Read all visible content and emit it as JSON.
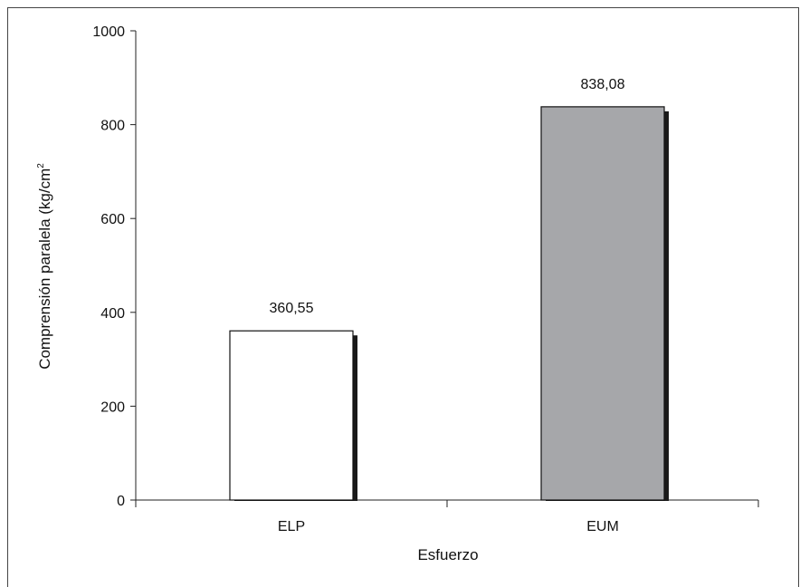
{
  "chart_data": {
    "type": "bar",
    "categories": [
      "ELP",
      "EUM"
    ],
    "values": [
      360.55,
      838.08
    ],
    "data_labels": [
      "360,55",
      "838,08"
    ],
    "bar_colors": [
      "#ffffff",
      "#a6a7aa"
    ],
    "shadow_color": "#1a1a1a",
    "xlabel": "Esfuerzo",
    "ylabel_main": "Comprensión paralela (kg/cm",
    "ylabel_sup": "2",
    "ylim": [
      0,
      1000
    ],
    "yticks": [
      0,
      200,
      400,
      600,
      800,
      1000
    ],
    "ytick_labels": [
      "0",
      "200",
      "400",
      "600",
      "800",
      "1000"
    ],
    "grid": false,
    "legend": "none"
  }
}
